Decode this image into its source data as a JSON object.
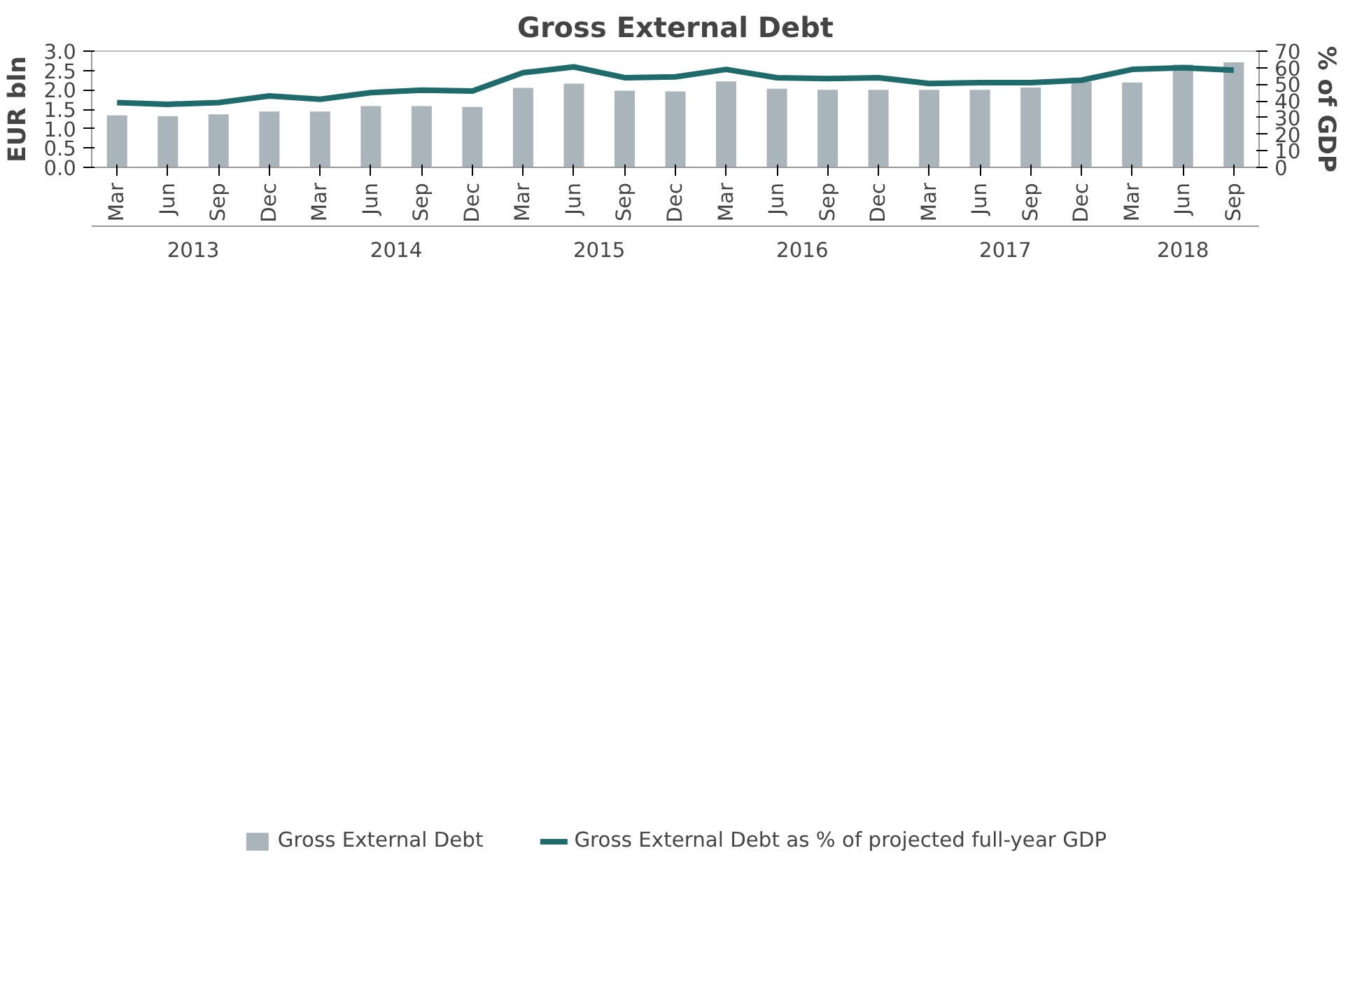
{
  "chart_data": {
    "type": "bar",
    "title": "Gross External Debt",
    "ylabel": "EUR bln",
    "y2label": "% of GDP",
    "categories": [
      "Mar",
      "Jun",
      "Sep",
      "Dec",
      "Mar",
      "Jun",
      "Sep",
      "Dec",
      "Mar",
      "Jun",
      "Sep",
      "Dec",
      "Mar",
      "Jun",
      "Sep",
      "Dec",
      "Mar",
      "Jun",
      "Sep",
      "Dec",
      "Mar",
      "Jun",
      "Sep"
    ],
    "annotations": [
      "2013",
      "2014",
      "2015",
      "2016",
      "2017",
      "2018"
    ],
    "series": [
      {
        "name": "Gross External Debt",
        "color": "#aab4bb",
        "values": [
          1.34,
          1.32,
          1.37,
          1.44,
          1.44,
          1.58,
          1.58,
          1.56,
          2.05,
          2.16,
          1.98,
          1.96,
          2.22,
          2.03,
          2.0,
          2.0,
          2.0,
          2.0,
          2.06,
          2.21,
          2.19,
          2.65,
          2.71
        ]
      },
      {
        "name": "Gross External Debt as % of projected full-year GDP",
        "type": "line",
        "axis": "y2",
        "color": "#1f6b6b",
        "values": [
          39,
          38,
          39,
          43,
          41,
          45,
          46.5,
          46,
          57,
          60.5,
          54,
          54.5,
          59,
          54,
          53.5,
          54,
          50.5,
          51,
          51,
          52.5,
          59,
          60,
          58.5
        ]
      }
    ],
    "ylim": [
      0,
      3.0
    ],
    "yticks": [
      {
        "value": 0,
        "label": "0.0"
      },
      {
        "value": 0.5,
        "label": "0.5"
      },
      {
        "value": 1.0,
        "label": "1.0"
      },
      {
        "value": 1.5,
        "label": "1.5"
      },
      {
        "value": 2.0,
        "label": "2.0"
      },
      {
        "value": 2.5,
        "label": "2.5"
      },
      {
        "value": 3.0,
        "label": "3.0"
      }
    ],
    "y2lim": [
      0,
      70
    ],
    "y2ticks": [
      0,
      10,
      20,
      30,
      40,
      50,
      60,
      70
    ],
    "grid": false,
    "legend": "bottom",
    "line_style": "solid",
    "marker": "none"
  }
}
